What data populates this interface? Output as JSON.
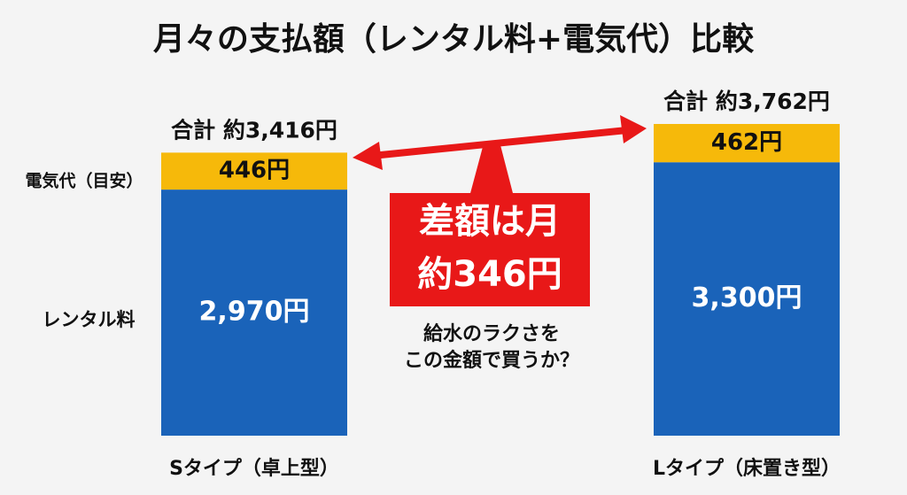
{
  "chart_data": {
    "type": "stacked_bar",
    "title": "月々の支払額（レンタル料+電気代）比較",
    "categories": [
      "Sタイプ（卓上型）",
      "Lタイプ（床置き型）"
    ],
    "series": [
      {
        "name": "レンタル料",
        "color": "#1a63b9",
        "values": [
          2970,
          3300
        ],
        "value_labels": [
          "2,970円",
          "3,300円"
        ]
      },
      {
        "name": "電気代（目安）",
        "color": "#f6b90a",
        "values": [
          446,
          462
        ],
        "value_labels": [
          "446円",
          "462円"
        ]
      }
    ],
    "total_labels": [
      "合計 約3,416円",
      "合計 約3,762円"
    ],
    "annotations": {
      "difference": [
        "差額は月",
        "約346円"
      ],
      "question": [
        "給水のラクさを",
        "この金額で買うか？"
      ]
    }
  }
}
